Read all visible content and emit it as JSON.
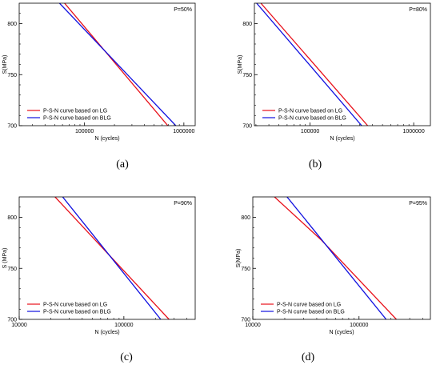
{
  "chart_data": [
    {
      "type": "line",
      "panel_label": "(a)",
      "annotation": "P=50%",
      "xlabel": "N (cycles)",
      "ylabel": "S(MPa)",
      "x_scale": "log",
      "xlim": [
        22000,
        1300000
      ],
      "ylim": [
        700,
        820
      ],
      "x_ticks": [
        100000,
        1000000
      ],
      "x_tick_labels": [
        "100000",
        "1000000"
      ],
      "y_ticks": [
        700,
        750,
        800
      ],
      "y_tick_labels": [
        "700",
        "750",
        "800"
      ],
      "legend_position": "bottom-left",
      "series": [
        {
          "name": "P-S-N curve based on LG",
          "color": "#e8101a",
          "points": [
            [
              63000,
              820
            ],
            [
              690000,
              700
            ]
          ]
        },
        {
          "name": "P-S-N curve based on BLG",
          "color": "#1010e0",
          "points": [
            [
              56000,
              820
            ],
            [
              830000,
              700
            ]
          ]
        }
      ]
    },
    {
      "type": "line",
      "panel_label": "(b)",
      "annotation": "P=80%",
      "xlabel": "N (cycles)",
      "ylabel": "S(MPa)",
      "x_scale": "log",
      "xlim": [
        29000,
        1450000
      ],
      "ylim": [
        700,
        820
      ],
      "x_ticks": [
        100000,
        1000000
      ],
      "x_tick_labels": [
        "100000",
        "1000000"
      ],
      "y_ticks": [
        700,
        750,
        800
      ],
      "y_tick_labels": [
        "700",
        "750",
        "800"
      ],
      "legend_position": "bottom-left",
      "series": [
        {
          "name": "P-S-N curve based on LG",
          "color": "#e8101a",
          "points": [
            [
              33500,
              820
            ],
            [
              360000,
              700
            ]
          ]
        },
        {
          "name": "P-S-N curve based on BLG",
          "color": "#1010e0",
          "points": [
            [
              30500,
              820
            ],
            [
              315000,
              700
            ]
          ]
        }
      ]
    },
    {
      "type": "line",
      "panel_label": "(c)",
      "annotation": "P=90%",
      "xlabel": "N (cycles)",
      "ylabel": "S (MPa)",
      "x_scale": "log",
      "xlim": [
        10000,
        480000
      ],
      "ylim": [
        700,
        820
      ],
      "x_ticks": [
        10000,
        100000
      ],
      "x_tick_labels": [
        "10000",
        "100000"
      ],
      "y_ticks": [
        700,
        750,
        800
      ],
      "y_tick_labels": [
        "700",
        "750",
        "800"
      ],
      "legend_position": "bottom-left",
      "series": [
        {
          "name": "P-S-N curve based on LG",
          "color": "#e8101a",
          "points": [
            [
              22000,
              820
            ],
            [
              270000,
              700
            ]
          ]
        },
        {
          "name": "P-S-N curve based on BLG",
          "color": "#1010e0",
          "points": [
            [
              26000,
              820
            ],
            [
              225000,
              700
            ]
          ]
        }
      ]
    },
    {
      "type": "line",
      "panel_label": "(d)",
      "annotation": "P=95%",
      "xlabel": "N (cycles)",
      "ylabel": "S(MPa)",
      "x_scale": "log",
      "xlim": [
        10000,
        470000
      ],
      "ylim": [
        700,
        820
      ],
      "x_ticks": [
        10000,
        100000
      ],
      "x_tick_labels": [
        "10000",
        "100000"
      ],
      "y_ticks": [
        700,
        750,
        800
      ],
      "y_tick_labels": [
        "700",
        "750",
        "800"
      ],
      "legend_position": "bottom-left",
      "series": [
        {
          "name": "P-S-N curve based on LG",
          "color": "#e8101a",
          "points": [
            [
              16000,
              820
            ],
            [
              44000,
              778
            ],
            [
              225000,
              700
            ]
          ]
        },
        {
          "name": "P-S-N curve based on BLG",
          "color": "#1010e0",
          "points": [
            [
              21000,
              820
            ],
            [
              180000,
              700
            ]
          ]
        }
      ]
    }
  ]
}
